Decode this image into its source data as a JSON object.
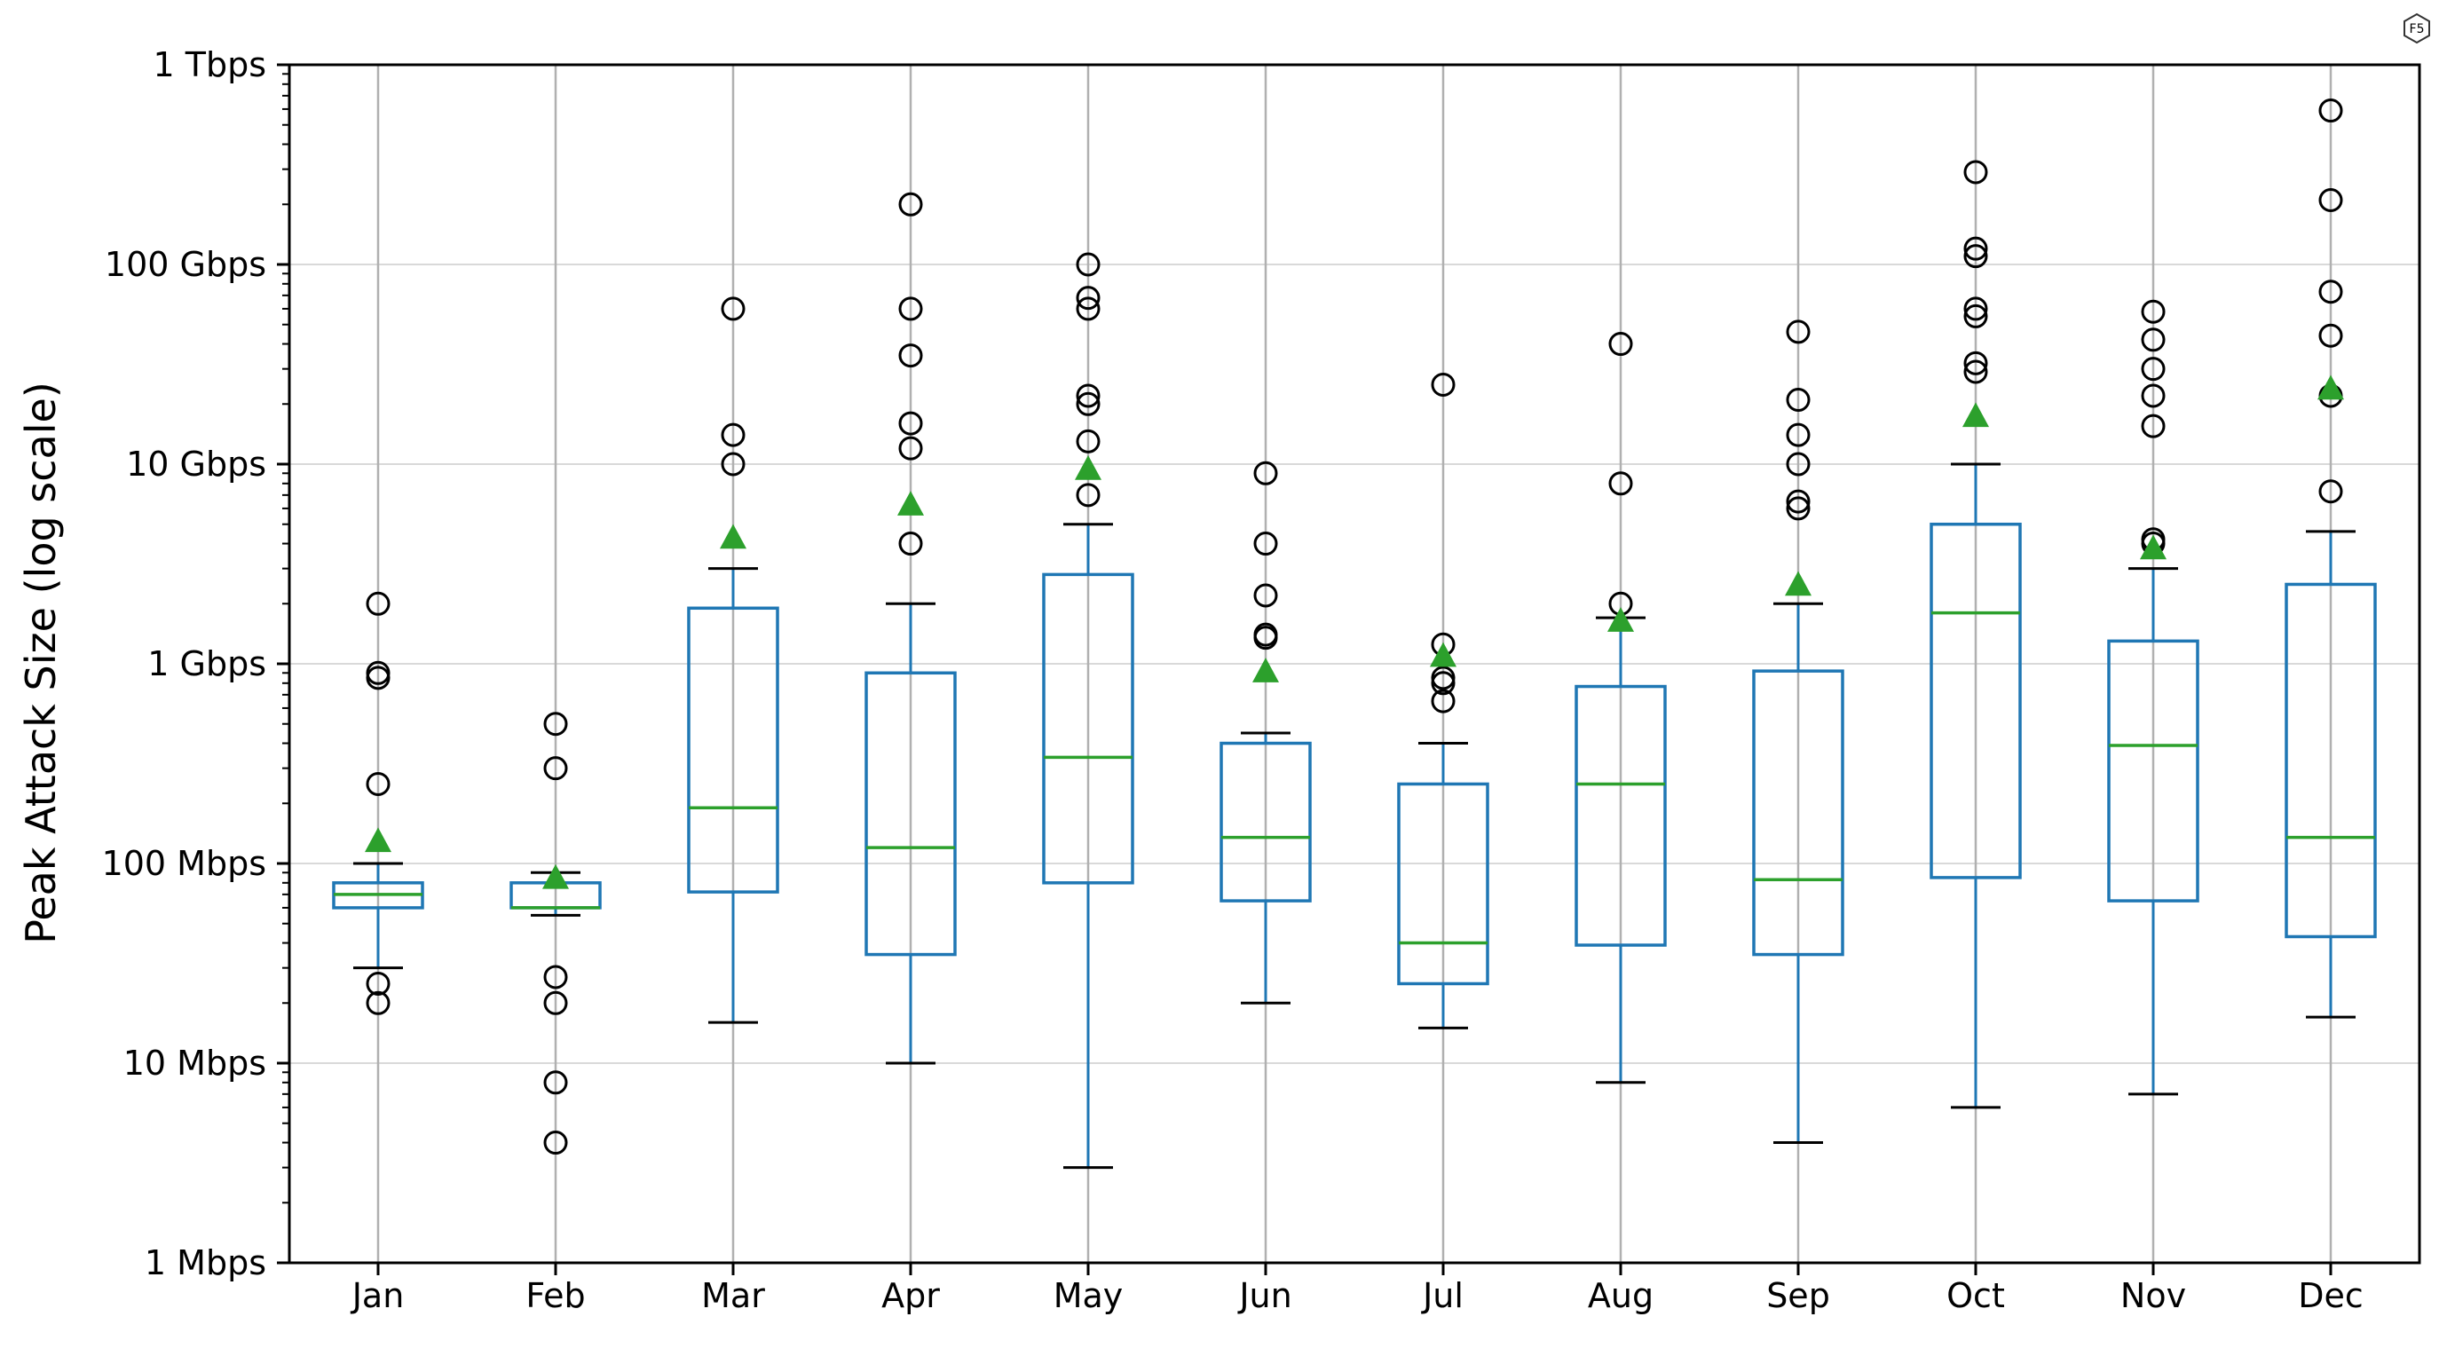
{
  "chart_data": {
    "type": "box",
    "title": "",
    "xlabel": "",
    "ylabel": "Peak Attack Size (log scale)",
    "yscale": "log",
    "ylim_mbps": [
      1,
      1000000
    ],
    "y_ticks": [
      {
        "value": 1,
        "label": "1 Mbps"
      },
      {
        "value": 10,
        "label": "10 Mbps"
      },
      {
        "value": 100,
        "label": "100 Mbps"
      },
      {
        "value": 1000,
        "label": "1 Gbps"
      },
      {
        "value": 10000,
        "label": "10 Gbps"
      },
      {
        "value": 100000,
        "label": "100 Gbps"
      },
      {
        "value": 1000000,
        "label": "1 Tbps"
      }
    ],
    "grid": true,
    "units": "Mbps",
    "categories": [
      "Jan",
      "Feb",
      "Mar",
      "Apr",
      "May",
      "Jun",
      "Jul",
      "Aug",
      "Sep",
      "Oct",
      "Nov",
      "Dec"
    ],
    "boxes": [
      {
        "month": "Jan",
        "whisker_low": 30,
        "q1": 60,
        "median": 70,
        "q3": 80,
        "whisker_high": 100,
        "mean": 130,
        "outliers": [
          20,
          25,
          850,
          900,
          2000,
          250
        ]
      },
      {
        "month": "Feb",
        "whisker_low": 55,
        "q1": 60,
        "median": 60,
        "q3": 80,
        "whisker_high": 90,
        "mean": 85,
        "outliers": [
          4,
          8,
          20,
          27,
          300,
          500
        ]
      },
      {
        "month": "Mar",
        "whisker_low": 16,
        "q1": 72,
        "median": 190,
        "q3": 1900,
        "whisker_high": 3000,
        "mean": 4300,
        "outliers": [
          10000,
          14000,
          60000
        ]
      },
      {
        "month": "Apr",
        "whisker_low": 10,
        "q1": 35,
        "median": 120,
        "q3": 900,
        "whisker_high": 2000,
        "mean": 6300,
        "outliers": [
          4000,
          12000,
          16000,
          35000,
          60000,
          200000
        ]
      },
      {
        "month": "May",
        "whisker_low": 3,
        "q1": 80,
        "median": 340,
        "q3": 2800,
        "whisker_high": 5000,
        "mean": 9500,
        "outliers": [
          7000,
          13000,
          20000,
          22000,
          60000,
          68000,
          100000
        ]
      },
      {
        "month": "Jun",
        "whisker_low": 20,
        "q1": 65,
        "median": 135,
        "q3": 400,
        "whisker_high": 450,
        "mean": 920,
        "outliers": [
          1350,
          1400,
          2200,
          4000,
          9000
        ]
      },
      {
        "month": "Jul",
        "whisker_low": 15,
        "q1": 25,
        "median": 40,
        "q3": 250,
        "whisker_high": 400,
        "mean": 1100,
        "outliers": [
          650,
          800,
          850,
          1250,
          25000
        ]
      },
      {
        "month": "Aug",
        "whisker_low": 8,
        "q1": 39,
        "median": 250,
        "q3": 770,
        "whisker_high": 1700,
        "mean": 1650,
        "outliers": [
          2000,
          8000,
          40000
        ]
      },
      {
        "month": "Sep",
        "whisker_low": 4,
        "q1": 35,
        "median": 83,
        "q3": 920,
        "whisker_high": 2000,
        "mean": 2500,
        "outliers": [
          6000,
          6500,
          10000,
          14000,
          21000,
          46000
        ]
      },
      {
        "month": "Oct",
        "whisker_low": 6,
        "q1": 85,
        "median": 1800,
        "q3": 5000,
        "whisker_high": 10000,
        "mean": 17500,
        "outliers": [
          29000,
          32000,
          55000,
          60000,
          110000,
          120000,
          290000
        ]
      },
      {
        "month": "Nov",
        "whisker_low": 7,
        "q1": 65,
        "median": 390,
        "q3": 1300,
        "whisker_high": 3000,
        "mean": 3800,
        "outliers": [
          4000,
          4200,
          15500,
          22000,
          30000,
          42000,
          58000
        ]
      },
      {
        "month": "Dec",
        "whisker_low": 17,
        "q1": 43,
        "median": 135,
        "q3": 2500,
        "whisker_high": 4600,
        "mean": 24000,
        "outliers": [
          7300,
          22000,
          44000,
          73000,
          210000,
          590000
        ]
      }
    ],
    "colors": {
      "box": "#1f77b4",
      "median": "#2ca02c",
      "mean_marker": "#2ca02c",
      "whisker_cap": "#000000",
      "outlier": "#000000",
      "grid": "#d9d9d9"
    },
    "markers": {
      "mean": "triangle",
      "outlier": "open-circle"
    }
  },
  "logo": {
    "text": "F5"
  }
}
